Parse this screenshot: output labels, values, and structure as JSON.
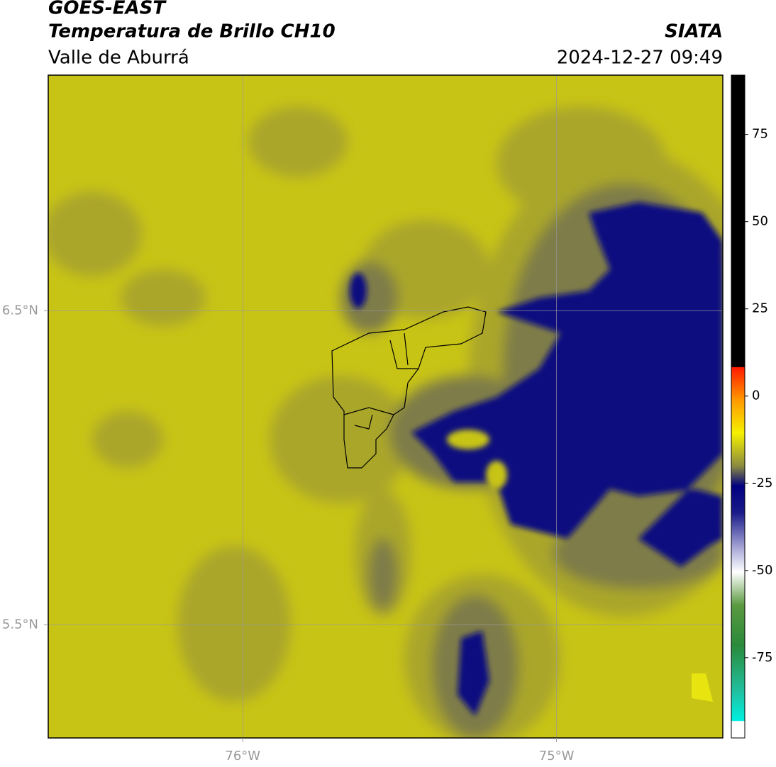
{
  "header": {
    "title": "GOES-EAST",
    "subtitle": "Temperatura de Brillo CH10",
    "region": "Valle de Aburrá",
    "source": "SIATA",
    "datetime": "2024-12-27 09:49"
  },
  "map": {
    "xlim": [
      -76.62,
      -74.47
    ],
    "ylim": [
      5.14,
      7.25
    ],
    "xticks": [
      {
        "value": -76,
        "label": "76°W"
      },
      {
        "value": -75,
        "label": "75°W"
      }
    ],
    "yticks": [
      {
        "value": 6.5,
        "label": "6.5°N"
      },
      {
        "value": 5.5,
        "label": "5.5°N"
      }
    ],
    "grid": true
  },
  "colorbar": {
    "lim": [
      -98,
      92
    ],
    "ticks": [
      75,
      50,
      25,
      0,
      -25,
      -50,
      -75
    ]
  }
}
